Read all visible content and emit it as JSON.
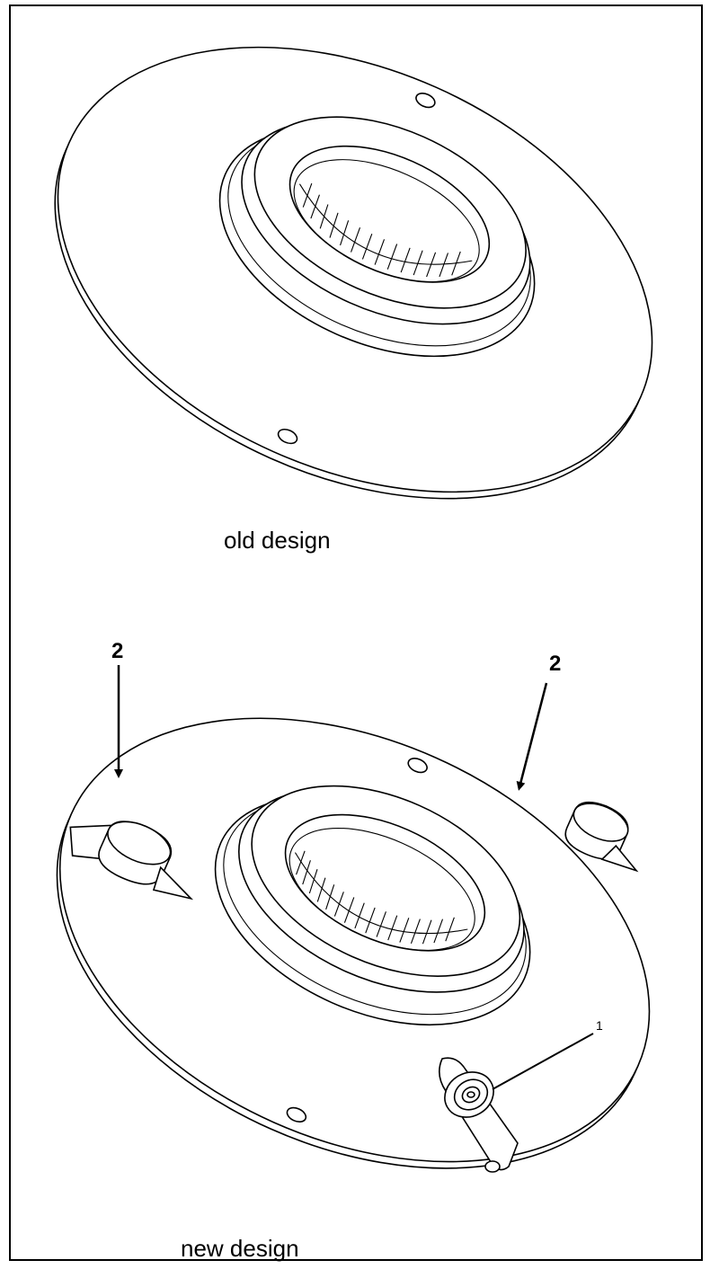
{
  "figure": {
    "top_caption": "old design",
    "bottom_caption": "new design",
    "callouts": {
      "left_marker": "2",
      "right_marker": "2",
      "small_marker": "1"
    }
  }
}
